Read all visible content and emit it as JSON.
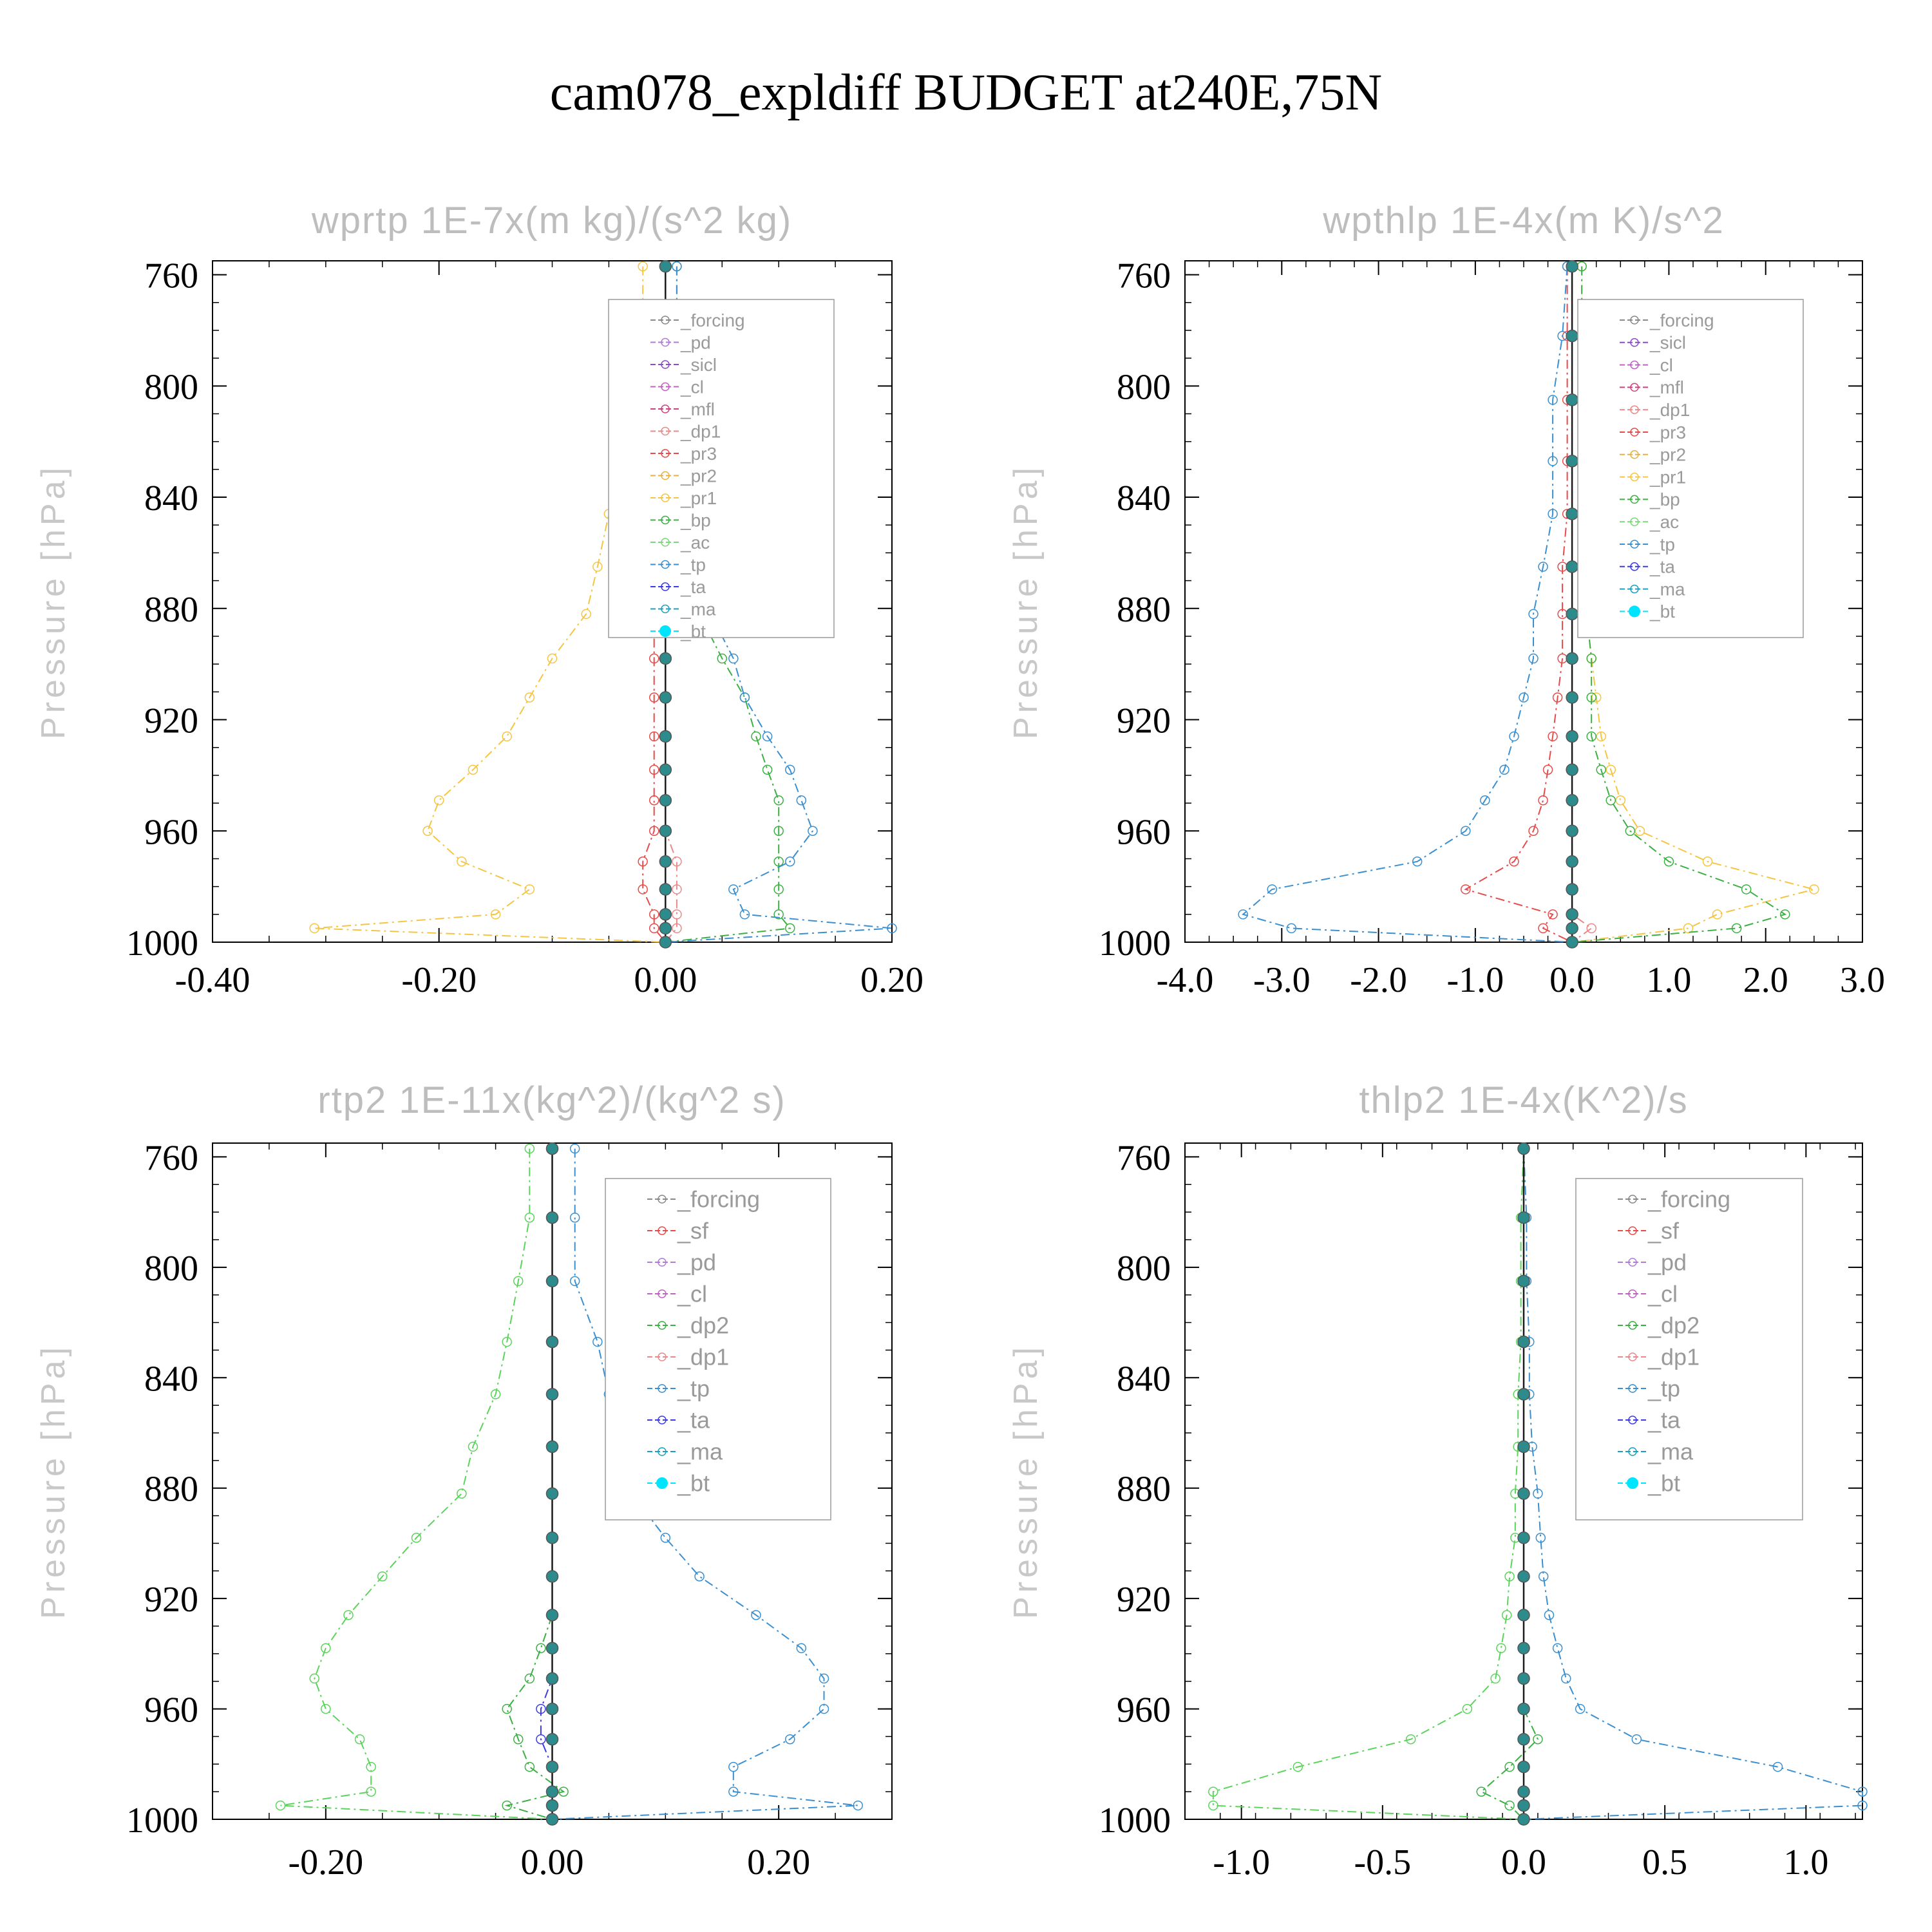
{
  "figure_title": "cam078_expldiff  BUDGET at240E,75N",
  "chart_data": [
    {
      "type": "line",
      "title": "wprtp   1E-7x(m kg)/(s^2 kg)",
      "ylabel": "Pressure [hPa]",
      "xlim": [
        -0.4,
        0.2
      ],
      "ylim": [
        1000,
        755
      ],
      "xticks": [
        "-0.40",
        "-0.20",
        "0.00",
        "0.20"
      ],
      "xtick_values": [
        -0.4,
        -0.2,
        0.0,
        0.2
      ],
      "yticks": [
        "760",
        "800",
        "840",
        "880",
        "920",
        "960",
        "1000"
      ],
      "ytick_values": [
        760,
        800,
        840,
        880,
        920,
        960,
        1000
      ],
      "legend": [
        "_forcing",
        "_pd",
        "_sicl",
        "_cl",
        "_mfl",
        "_dp1",
        "_pr3",
        "_pr2",
        "_pr1",
        "_bp",
        "_ac",
        "_tp",
        "_ta",
        "_ma",
        "_bt"
      ],
      "levels": [
        757,
        782,
        805,
        827,
        846,
        865,
        882,
        898,
        912,
        926,
        938,
        949,
        960,
        971,
        981,
        990,
        995,
        1000
      ],
      "series": [
        {
          "name": "_pr1",
          "color": "#f5c542",
          "values": [
            -0.02,
            -0.02,
            -0.02,
            -0.04,
            -0.05,
            -0.06,
            -0.07,
            -0.1,
            -0.12,
            -0.14,
            -0.17,
            -0.2,
            -0.21,
            -0.18,
            -0.12,
            -0.15,
            -0.31,
            0.0
          ]
        },
        {
          "name": "_pr3",
          "color": "#e84a4a",
          "values": [
            0.0,
            0.0,
            0.0,
            0.0,
            0.0,
            0.0,
            -0.01,
            -0.01,
            -0.01,
            -0.01,
            -0.01,
            -0.01,
            -0.01,
            -0.02,
            -0.02,
            -0.01,
            -0.01,
            0.0
          ]
        },
        {
          "name": "_dp1",
          "color": "#e88a8a",
          "values": [
            0.0,
            0.0,
            0.0,
            0.0,
            0.0,
            0.0,
            0.0,
            0.0,
            0.0,
            0.0,
            0.0,
            0.0,
            0.0,
            0.01,
            0.01,
            0.01,
            0.01,
            0.0
          ]
        },
        {
          "name": "_bp",
          "color": "#3cb043",
          "values": [
            0.01,
            0.01,
            0.01,
            0.01,
            0.02,
            0.02,
            0.03,
            0.05,
            0.07,
            0.08,
            0.09,
            0.1,
            0.1,
            0.1,
            0.1,
            0.1,
            0.11,
            0.0
          ]
        },
        {
          "name": "_tp",
          "color": "#3a8fd0",
          "values": [
            0.01,
            0.01,
            0.02,
            0.02,
            0.03,
            0.04,
            0.04,
            0.06,
            0.07,
            0.09,
            0.11,
            0.12,
            0.13,
            0.11,
            0.06,
            0.07,
            0.2,
            0.0
          ]
        },
        {
          "name": "_bt",
          "color": "#00e5ff",
          "values": [
            0.0,
            0.0,
            0.0,
            0.0,
            0.0,
            0.0,
            0.0,
            0.0,
            0.0,
            0.0,
            0.0,
            0.0,
            0.0,
            0.0,
            0.0,
            0.0,
            0.0,
            0.0
          ]
        }
      ]
    },
    {
      "type": "line",
      "title": "wpthlp   1E-4x(m K)/s^2",
      "ylabel": "Pressure [hPa]",
      "xlim": [
        -4.0,
        3.0
      ],
      "ylim": [
        1000,
        755
      ],
      "xticks": [
        "-4.0",
        "-3.0",
        "-2.0",
        "-1.0",
        "0.0",
        "1.0",
        "2.0",
        "3.0"
      ],
      "xtick_values": [
        -4.0,
        -3.0,
        -2.0,
        -1.0,
        0.0,
        1.0,
        2.0,
        3.0
      ],
      "yticks": [
        "760",
        "800",
        "840",
        "880",
        "920",
        "960",
        "1000"
      ],
      "ytick_values": [
        760,
        800,
        840,
        880,
        920,
        960,
        1000
      ],
      "legend": [
        "_forcing",
        "_sicl",
        "_cl",
        "_mfl",
        "_dp1",
        "_pr3",
        "_pr2",
        "_pr1",
        "_bp",
        "_ac",
        "_tp",
        "_ta",
        "_ma",
        "_bt"
      ],
      "levels": [
        757,
        782,
        805,
        827,
        846,
        865,
        882,
        898,
        912,
        926,
        938,
        949,
        960,
        971,
        981,
        990,
        995,
        1000
      ],
      "series": [
        {
          "name": "_pr1",
          "color": "#f5c542",
          "values": [
            0.1,
            0.1,
            0.1,
            0.1,
            0.1,
            0.1,
            0.15,
            0.2,
            0.25,
            0.3,
            0.4,
            0.5,
            0.7,
            1.4,
            2.5,
            1.5,
            1.2,
            0.0
          ]
        },
        {
          "name": "_bp",
          "color": "#3cb043",
          "values": [
            0.1,
            0.1,
            0.15,
            0.15,
            0.15,
            0.15,
            0.15,
            0.2,
            0.2,
            0.2,
            0.3,
            0.4,
            0.6,
            1.0,
            1.8,
            2.2,
            1.7,
            0.0
          ]
        },
        {
          "name": "_pr3",
          "color": "#e84a4a",
          "values": [
            -0.05,
            -0.05,
            -0.05,
            -0.05,
            -0.05,
            -0.1,
            -0.1,
            -0.1,
            -0.15,
            -0.2,
            -0.25,
            -0.3,
            -0.4,
            -0.6,
            -1.1,
            -0.2,
            -0.3,
            0.0
          ]
        },
        {
          "name": "_tp",
          "color": "#3a8fd0",
          "values": [
            -0.05,
            -0.1,
            -0.2,
            -0.2,
            -0.2,
            -0.3,
            -0.4,
            -0.4,
            -0.5,
            -0.6,
            -0.7,
            -0.9,
            -1.1,
            -1.6,
            -3.1,
            -3.4,
            -2.9,
            0.0
          ]
        },
        {
          "name": "_dp1",
          "color": "#e88a8a",
          "values": [
            0.0,
            0.0,
            0.0,
            0.0,
            0.0,
            0.0,
            0.0,
            0.0,
            0.0,
            0.0,
            0.0,
            0.0,
            0.0,
            0.0,
            0.0,
            0.0,
            0.2,
            0.0
          ]
        },
        {
          "name": "_bt",
          "color": "#00e5ff",
          "values": [
            0.0,
            0.0,
            0.0,
            0.0,
            0.0,
            0.0,
            0.0,
            0.0,
            0.0,
            0.0,
            0.0,
            0.0,
            0.0,
            0.0,
            0.0,
            0.0,
            0.0,
            0.0
          ]
        }
      ]
    },
    {
      "type": "line",
      "title": "rtp2   1E-11x(kg^2)/(kg^2 s)",
      "ylabel": "Pressure [hPa]",
      "xlim": [
        -0.3,
        0.3
      ],
      "ylim": [
        1000,
        755
      ],
      "xticks": [
        "-0.20",
        "0.00",
        "0.20"
      ],
      "xtick_values": [
        -0.2,
        0.0,
        0.2
      ],
      "yticks": [
        "760",
        "800",
        "840",
        "880",
        "920",
        "960",
        "1000"
      ],
      "ytick_values": [
        760,
        800,
        840,
        880,
        920,
        960,
        1000
      ],
      "legend": [
        "_forcing",
        "_sf",
        "_pd",
        "_cl",
        "_dp2",
        "_dp1",
        "_tp",
        "_ta",
        "_ma",
        "_bt"
      ],
      "levels": [
        757,
        782,
        805,
        827,
        846,
        865,
        882,
        898,
        912,
        926,
        938,
        949,
        960,
        971,
        981,
        990,
        995,
        1000
      ],
      "series": [
        {
          "name": "_dp1",
          "color": "#5ad45a",
          "values": [
            -0.02,
            -0.02,
            -0.03,
            -0.04,
            -0.05,
            -0.07,
            -0.08,
            -0.12,
            -0.15,
            -0.18,
            -0.2,
            -0.21,
            -0.2,
            -0.17,
            -0.16,
            -0.16,
            -0.24,
            0.0
          ]
        },
        {
          "name": "_tp",
          "color": "#3a8fd0",
          "values": [
            0.02,
            0.02,
            0.02,
            0.04,
            0.05,
            0.06,
            0.07,
            0.1,
            0.13,
            0.18,
            0.22,
            0.24,
            0.24,
            0.21,
            0.16,
            0.16,
            0.27,
            0.0
          ]
        },
        {
          "name": "_dp2",
          "color": "#3cb043",
          "values": [
            0.0,
            0.0,
            0.0,
            0.0,
            0.0,
            0.0,
            0.0,
            0.0,
            0.0,
            0.0,
            -0.01,
            -0.02,
            -0.04,
            -0.03,
            -0.02,
            0.01,
            -0.04,
            0.0
          ]
        },
        {
          "name": "_ta",
          "color": "#3a3ae8",
          "values": [
            0.0,
            0.0,
            0.0,
            0.0,
            0.0,
            0.0,
            0.0,
            0.0,
            0.0,
            0.0,
            0.0,
            0.0,
            -0.01,
            -0.01,
            0.0,
            0.0,
            0.0,
            0.0
          ]
        },
        {
          "name": "_bt",
          "color": "#00e5ff",
          "values": [
            0.0,
            0.0,
            0.0,
            0.0,
            0.0,
            0.0,
            0.0,
            0.0,
            0.0,
            0.0,
            0.0,
            0.0,
            0.0,
            0.0,
            0.0,
            0.0,
            0.0,
            0.0
          ]
        }
      ]
    },
    {
      "type": "line",
      "title": "thlp2   1E-4x(K^2)/s",
      "ylabel": "Pressure [hPa]",
      "xlim": [
        -1.2,
        1.2
      ],
      "ylim": [
        1000,
        755
      ],
      "xticks": [
        "-1.0",
        "-0.5",
        "0.0",
        "0.5",
        "1.0"
      ],
      "xtick_values": [
        -1.0,
        -0.5,
        0.0,
        0.5,
        1.0
      ],
      "yticks": [
        "760",
        "800",
        "840",
        "880",
        "920",
        "960",
        "1000"
      ],
      "ytick_values": [
        760,
        800,
        840,
        880,
        920,
        960,
        1000
      ],
      "legend": [
        "_forcing",
        "_sf",
        "_pd",
        "_cl",
        "_dp2",
        "_dp1",
        "_tp",
        "_ta",
        "_ma",
        "_bt"
      ],
      "levels": [
        757,
        782,
        805,
        827,
        846,
        865,
        882,
        898,
        912,
        926,
        938,
        949,
        960,
        971,
        981,
        990,
        995,
        1000
      ],
      "series": [
        {
          "name": "_dp1",
          "color": "#5ad45a",
          "values": [
            0.0,
            -0.01,
            -0.01,
            -0.01,
            -0.02,
            -0.02,
            -0.03,
            -0.03,
            -0.05,
            -0.06,
            -0.08,
            -0.1,
            -0.2,
            -0.4,
            -0.8,
            -1.1,
            -1.1,
            0.0
          ]
        },
        {
          "name": "_tp",
          "color": "#3a8fd0",
          "values": [
            0.0,
            0.01,
            0.01,
            0.02,
            0.02,
            0.03,
            0.05,
            0.06,
            0.07,
            0.09,
            0.12,
            0.15,
            0.2,
            0.4,
            0.9,
            1.2,
            1.2,
            0.0
          ]
        },
        {
          "name": "_dp2",
          "color": "#3cb043",
          "values": [
            0.0,
            0.0,
            0.0,
            0.0,
            0.0,
            0.0,
            0.0,
            0.0,
            0.0,
            0.0,
            0.0,
            0.0,
            0.0,
            0.05,
            -0.05,
            -0.15,
            -0.05,
            0.0
          ]
        },
        {
          "name": "_bt",
          "color": "#00e5ff",
          "values": [
            0.0,
            0.0,
            0.0,
            0.0,
            0.0,
            0.0,
            0.0,
            0.0,
            0.0,
            0.0,
            0.0,
            0.0,
            0.0,
            0.0,
            0.0,
            0.0,
            0.0,
            0.0
          ]
        }
      ]
    }
  ]
}
